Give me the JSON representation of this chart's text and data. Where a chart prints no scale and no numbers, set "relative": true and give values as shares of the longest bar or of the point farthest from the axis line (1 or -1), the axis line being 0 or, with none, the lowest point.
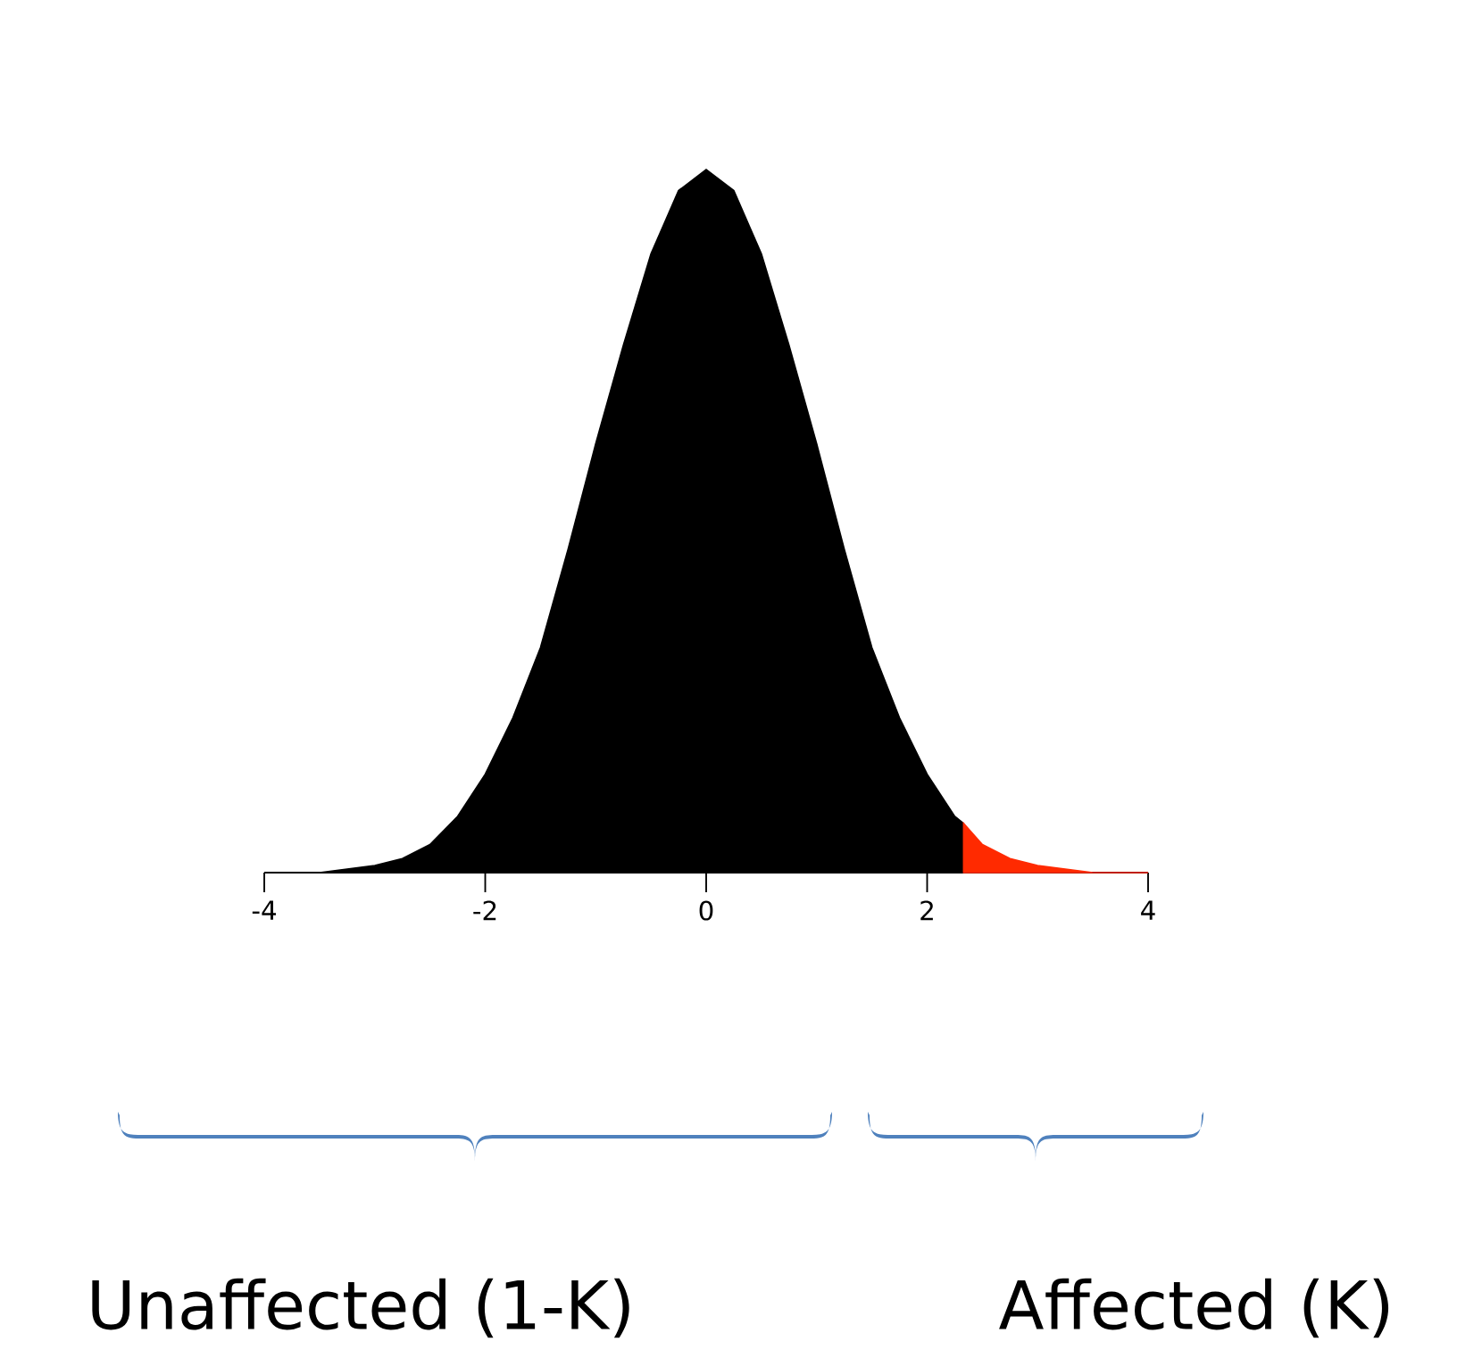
{
  "chart_data": {
    "type": "area",
    "relative": true,
    "xlim": [
      -4,
      4
    ],
    "xticks": [
      -4,
      -2,
      0,
      2,
      4
    ],
    "tick_labels": "x",
    "series": [
      {
        "color": "#000000",
        "x": [
          -4,
          -3.5,
          -3,
          -2.75,
          -2.5,
          -2.25,
          -2,
          -1.75,
          -1.5,
          -1.25,
          -1,
          -0.75,
          -0.5,
          -0.25,
          0,
          0.25,
          0.5,
          0.75,
          1,
          1.25,
          1.5,
          1.75,
          2,
          2.25,
          2.33
        ],
        "values": [
          0,
          0,
          0.01,
          0.02,
          0.04,
          0.08,
          0.14,
          0.22,
          0.32,
          0.46,
          0.61,
          0.75,
          0.88,
          0.97,
          1,
          0.97,
          0.88,
          0.75,
          0.61,
          0.46,
          0.32,
          0.22,
          0.14,
          0.08,
          0.07
        ]
      },
      {
        "color": "#ff2a00",
        "x": [
          2.33,
          2.5,
          2.75,
          3,
          3.5,
          4
        ],
        "values": [
          0.07,
          0.04,
          0.02,
          0.01,
          0,
          0
        ]
      }
    ],
    "annotations": [
      "Unaffected (1-K)",
      "Affected (K)"
    ]
  }
}
